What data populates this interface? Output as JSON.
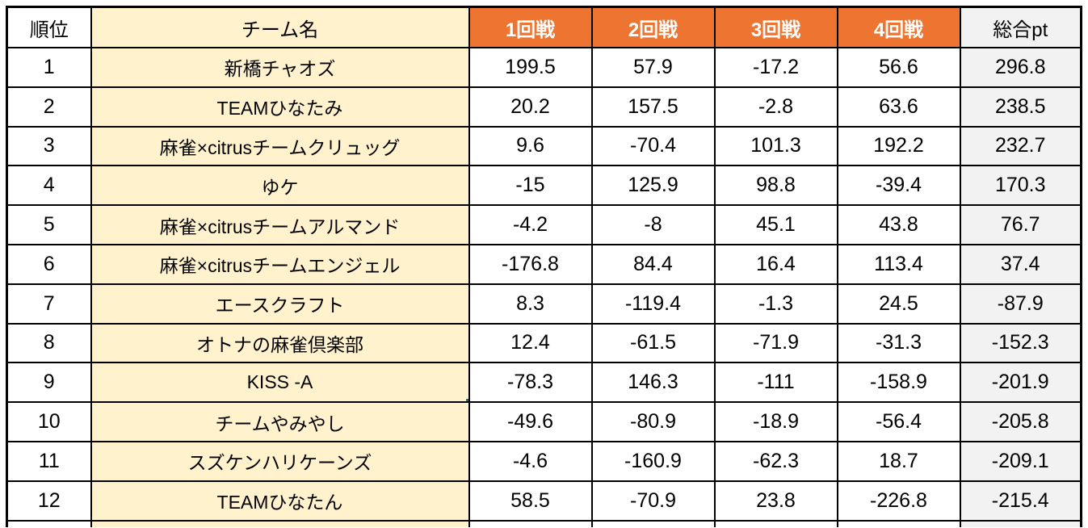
{
  "colors": {
    "header_orange": "#ED7431",
    "header_text": "#FFFFFF",
    "team_cream": "#FFF2CC",
    "total_gray": "#F2F2F2",
    "border_black": "#000000",
    "selection_green": "#217346"
  },
  "table": {
    "columns": [
      {
        "key": "rank",
        "label": "順位"
      },
      {
        "key": "team",
        "label": "チーム名"
      },
      {
        "key": "r1",
        "label": "1回戦"
      },
      {
        "key": "r2",
        "label": "2回戦"
      },
      {
        "key": "r3",
        "label": "3回戦"
      },
      {
        "key": "r4",
        "label": "4回戦"
      },
      {
        "key": "total",
        "label": "総合pt"
      }
    ],
    "rows": [
      {
        "rank": "1",
        "team": "新橋チャオズ",
        "r1": "199.5",
        "r2": "57.9",
        "r3": "-17.2",
        "r4": "56.6",
        "total": "296.8"
      },
      {
        "rank": "2",
        "team": "TEAMひなたみ",
        "r1": "20.2",
        "r2": "157.5",
        "r3": "-2.8",
        "r4": "63.6",
        "total": "238.5"
      },
      {
        "rank": "3",
        "team": "麻雀×citrusチームクリュッグ",
        "r1": "9.6",
        "r2": "-70.4",
        "r3": "101.3",
        "r4": "192.2",
        "total": "232.7"
      },
      {
        "rank": "4",
        "team": "ゆケ",
        "r1": "-15",
        "r2": "125.9",
        "r3": "98.8",
        "r4": "-39.4",
        "total": "170.3"
      },
      {
        "rank": "5",
        "team": "麻雀×citrusチームアルマンド",
        "r1": "-4.2",
        "r2": "-8",
        "r3": "45.1",
        "r4": "43.8",
        "total": "76.7"
      },
      {
        "rank": "6",
        "team": "麻雀×citrusチームエンジェル",
        "r1": "-176.8",
        "r2": "84.4",
        "r3": "16.4",
        "r4": "113.4",
        "total": "37.4"
      },
      {
        "rank": "7",
        "team": "エースクラフト",
        "r1": "8.3",
        "r2": "-119.4",
        "r3": "-1.3",
        "r4": "24.5",
        "total": "-87.9"
      },
      {
        "rank": "8",
        "team": "オトナの麻雀倶楽部",
        "r1": "12.4",
        "r2": "-61.5",
        "r3": "-71.9",
        "r4": "-31.3",
        "total": "-152.3"
      },
      {
        "rank": "9",
        "team": "KISS -A",
        "r1": "-78.3",
        "r2": "146.3",
        "r3": "-111",
        "r4": "-158.9",
        "total": "-201.9"
      },
      {
        "rank": "10",
        "team": "チームやみやし",
        "r1": "-49.6",
        "r2": "-80.9",
        "r3": "-18.9",
        "r4": "-56.4",
        "total": "-205.8"
      },
      {
        "rank": "11",
        "team": "スズケンハリケーンズ",
        "r1": "-4.6",
        "r2": "-160.9",
        "r3": "-62.3",
        "r4": "18.7",
        "total": "-209.1"
      },
      {
        "rank": "12",
        "team": "TEAMひなたん",
        "r1": "58.5",
        "r2": "-70.9",
        "r3": "23.8",
        "r4": "-226.8",
        "total": "-215.4"
      }
    ],
    "selection": {
      "rank": "9",
      "column": "team"
    }
  }
}
